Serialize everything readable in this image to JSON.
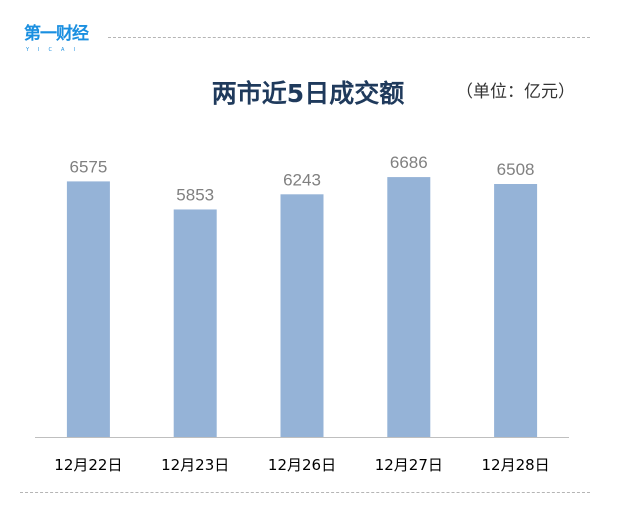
{
  "logo": {
    "text": "第一财经",
    "sub": "YICAI"
  },
  "chart_data": {
    "type": "bar",
    "title": "两市近5日成交额",
    "unit": "（单位：亿元）",
    "categories": [
      "12月22日",
      "12月23日",
      "12月26日",
      "12月27日",
      "12月28日"
    ],
    "values": [
      6575,
      5853,
      6243,
      6686,
      6508
    ],
    "ylim": [
      0,
      8000
    ],
    "grid": false,
    "bar_color": "#95b3d7",
    "label_color": "#808080"
  }
}
